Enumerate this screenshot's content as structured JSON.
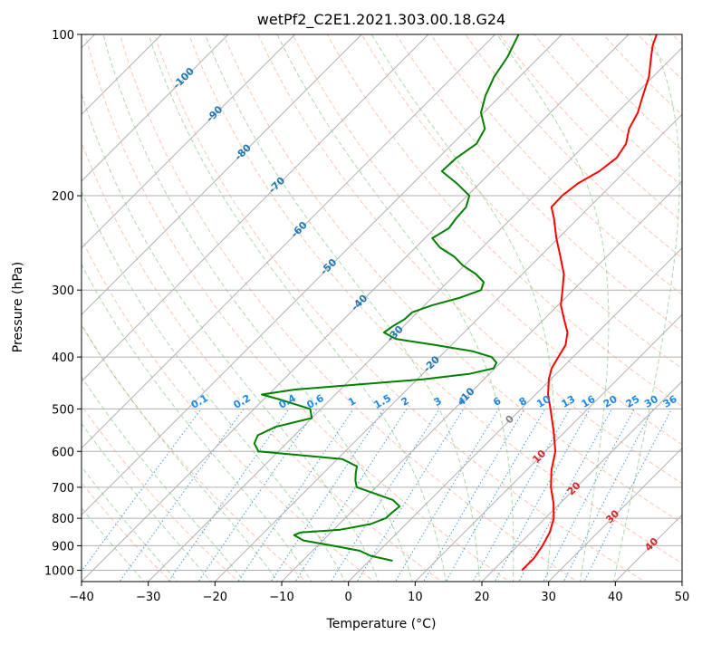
{
  "chart_data": {
    "type": "line",
    "subtype": "skew-t log-p diagram",
    "title": "wetPf2_C2E1.2021.303.00.18.G24",
    "xlabel": "Temperature (°C)",
    "ylabel": "Pressure (hPa)",
    "xlim": [
      -40,
      50
    ],
    "ylim": [
      1050,
      100
    ],
    "y_scale": "log",
    "grid": true,
    "x_ticks": [
      "−40",
      "−30",
      "−20",
      "−10",
      "0",
      "10",
      "20",
      "30",
      "40",
      "50"
    ],
    "y_ticks": [
      "100",
      "200",
      "300",
      "400",
      "500",
      "600",
      "700",
      "800",
      "900",
      "1000"
    ],
    "isotherm_labels": [
      "-100",
      "-90",
      "-80",
      "-70",
      "-60",
      "-50",
      "-40",
      "-30",
      "-20",
      "-10",
      "0",
      "10",
      "20",
      "30",
      "40"
    ],
    "mixing_ratio_labels": [
      "0.1",
      "0.2",
      "0.4",
      "0.6",
      "1",
      "1.5",
      "2",
      "3",
      "4",
      "6",
      "8",
      "10",
      "13",
      "16",
      "20",
      "25",
      "30",
      "36"
    ],
    "colors": {
      "temperature": "#ff0000",
      "dewpoint": "#008000",
      "isotherm_label": "#1f77b4",
      "mixing_ratio": "#1e88e5",
      "dry_adiabat": "#ff7f50",
      "moist_adiabat": "#2ca02c",
      "warm_label": "#d62728",
      "zero_label": "#808080",
      "grid": "#b0b0b0"
    },
    "series": [
      {
        "key": "temperature",
        "points": [
          {
            "p": 1000,
            "t": 24.3
          },
          {
            "p": 950,
            "t": 24.3
          },
          {
            "p": 900,
            "t": 23.7
          },
          {
            "p": 850,
            "t": 22.8
          },
          {
            "p": 800,
            "t": 21.3
          },
          {
            "p": 750,
            "t": 19.0
          },
          {
            "p": 700,
            "t": 16.2
          },
          {
            "p": 650,
            "t": 13.7
          },
          {
            "p": 600,
            "t": 11.5
          },
          {
            "p": 550,
            "t": 8.2
          },
          {
            "p": 500,
            "t": 4.4
          },
          {
            "p": 470,
            "t": 1.9
          },
          {
            "p": 440,
            "t": -0.3
          },
          {
            "p": 420,
            "t": -1.5
          },
          {
            "p": 400,
            "t": -2.2
          },
          {
            "p": 380,
            "t": -2.9
          },
          {
            "p": 360,
            "t": -4.5
          },
          {
            "p": 340,
            "t": -7.0
          },
          {
            "p": 320,
            "t": -9.6
          },
          {
            "p": 300,
            "t": -11.6
          },
          {
            "p": 280,
            "t": -13.8
          },
          {
            "p": 260,
            "t": -16.9
          },
          {
            "p": 240,
            "t": -20.3
          },
          {
            "p": 220,
            "t": -23.7
          },
          {
            "p": 210,
            "t": -25.7
          },
          {
            "p": 200,
            "t": -25.8
          },
          {
            "p": 190,
            "t": -25.3
          },
          {
            "p": 180,
            "t": -23.9
          },
          {
            "p": 170,
            "t": -23.3
          },
          {
            "p": 160,
            "t": -24.0
          },
          {
            "p": 150,
            "t": -25.8
          },
          {
            "p": 140,
            "t": -26.9
          },
          {
            "p": 130,
            "t": -28.7
          },
          {
            "p": 120,
            "t": -30.6
          },
          {
            "p": 110,
            "t": -33.3
          },
          {
            "p": 105,
            "t": -34.7
          },
          {
            "p": 100,
            "t": -35.8
          }
        ]
      },
      {
        "key": "dewpoint",
        "points": [
          {
            "p": 960,
            "t": 3.5
          },
          {
            "p": 940,
            "t": -0.5
          },
          {
            "p": 920,
            "t": -2.9
          },
          {
            "p": 900,
            "t": -7.7
          },
          {
            "p": 880,
            "t": -12.9
          },
          {
            "p": 860,
            "t": -15.1
          },
          {
            "p": 850,
            "t": -14.5
          },
          {
            "p": 840,
            "t": -9.0
          },
          {
            "p": 820,
            "t": -5.3
          },
          {
            "p": 800,
            "t": -3.9
          },
          {
            "p": 780,
            "t": -3.8
          },
          {
            "p": 760,
            "t": -3.6
          },
          {
            "p": 740,
            "t": -5.5
          },
          {
            "p": 720,
            "t": -9.1
          },
          {
            "p": 700,
            "t": -12.9
          },
          {
            "p": 680,
            "t": -14.1
          },
          {
            "p": 660,
            "t": -15.1
          },
          {
            "p": 640,
            "t": -16.0
          },
          {
            "p": 620,
            "t": -19.3
          },
          {
            "p": 610,
            "t": -26.1
          },
          {
            "p": 600,
            "t": -33.0
          },
          {
            "p": 580,
            "t": -34.8
          },
          {
            "p": 560,
            "t": -35.5
          },
          {
            "p": 540,
            "t": -34.1
          },
          {
            "p": 520,
            "t": -30.0
          },
          {
            "p": 500,
            "t": -31.6
          },
          {
            "p": 480,
            "t": -37.6
          },
          {
            "p": 470,
            "t": -41.0
          },
          {
            "p": 460,
            "t": -36.8
          },
          {
            "p": 450,
            "t": -28.0
          },
          {
            "p": 440,
            "t": -19.0
          },
          {
            "p": 430,
            "t": -13.0
          },
          {
            "p": 420,
            "t": -10.2
          },
          {
            "p": 410,
            "t": -10.6
          },
          {
            "p": 400,
            "t": -12.2
          },
          {
            "p": 390,
            "t": -16.0
          },
          {
            "p": 380,
            "t": -22.4
          },
          {
            "p": 370,
            "t": -29.3
          },
          {
            "p": 360,
            "t": -32.0
          },
          {
            "p": 350,
            "t": -31.6
          },
          {
            "p": 340,
            "t": -30.9
          },
          {
            "p": 330,
            "t": -30.8
          },
          {
            "p": 320,
            "t": -28.8
          },
          {
            "p": 310,
            "t": -25.8
          },
          {
            "p": 300,
            "t": -23.8
          },
          {
            "p": 290,
            "t": -24.6
          },
          {
            "p": 280,
            "t": -27.0
          },
          {
            "p": 270,
            "t": -30.2
          },
          {
            "p": 260,
            "t": -32.8
          },
          {
            "p": 250,
            "t": -36.3
          },
          {
            "p": 240,
            "t": -38.9
          },
          {
            "p": 230,
            "t": -37.9
          },
          {
            "p": 220,
            "t": -38.3
          },
          {
            "p": 210,
            "t": -38.5
          },
          {
            "p": 200,
            "t": -39.7
          },
          {
            "p": 190,
            "t": -43.3
          },
          {
            "p": 180,
            "t": -47.5
          },
          {
            "p": 170,
            "t": -47.3
          },
          {
            "p": 160,
            "t": -46.4
          },
          {
            "p": 150,
            "t": -47.4
          },
          {
            "p": 140,
            "t": -50.4
          },
          {
            "p": 130,
            "t": -52.3
          },
          {
            "p": 120,
            "t": -53.8
          },
          {
            "p": 110,
            "t": -54.8
          },
          {
            "p": 100,
            "t": -56.5
          }
        ]
      }
    ]
  }
}
